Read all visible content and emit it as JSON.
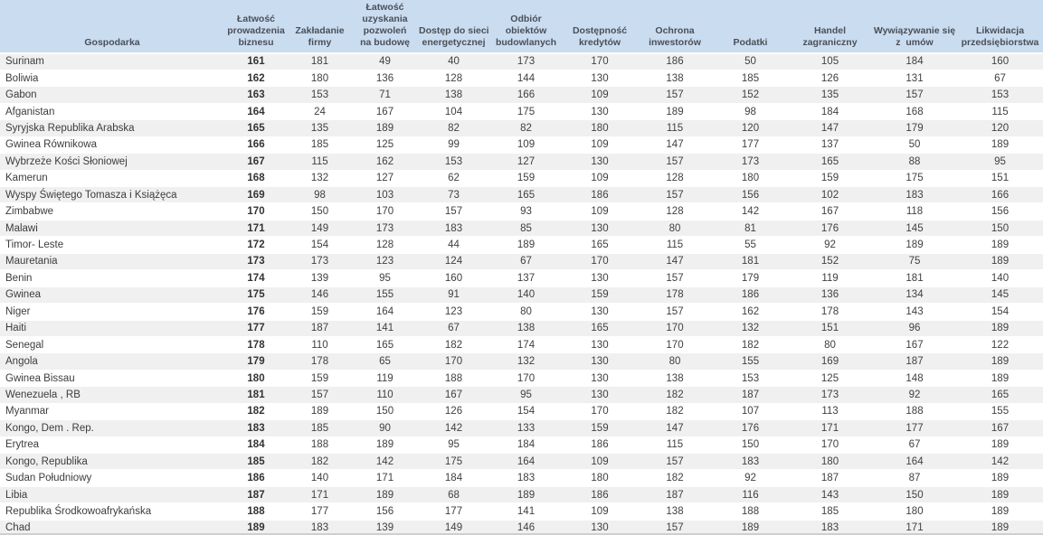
{
  "table": {
    "columns": [
      {
        "id": "economy",
        "label": "Gospodarka"
      },
      {
        "id": "ease-of-doing-business",
        "label": "Łatwość\nprowadzenia\nbiznesu"
      },
      {
        "id": "starting-a-business",
        "label": "Zakładanie\nfirmy"
      },
      {
        "id": "construction-permits",
        "label": "Łatwość\nuzyskania\npozwoleń\nna budowę"
      },
      {
        "id": "getting-electricity",
        "label": "Dostęp do sieci\nenergetycznej"
      },
      {
        "id": "building-acceptance",
        "label": "Odbiór\nobiektów\nbudowlanych"
      },
      {
        "id": "getting-credit",
        "label": "Dostępność\nkredytów"
      },
      {
        "id": "protecting-investors",
        "label": "Ochrona\ninwestorów"
      },
      {
        "id": "taxes",
        "label": "Podatki"
      },
      {
        "id": "foreign-trade",
        "label": "Handel\nzagraniczny"
      },
      {
        "id": "enforcing-contracts",
        "label": "Wywiązywanie się\nz  umów"
      },
      {
        "id": "resolving-insolvency",
        "label": "Likwidacja\nprzedsiębiorstwa"
      }
    ],
    "rows": [
      {
        "economy": "Surinam",
        "values": [
          161,
          181,
          49,
          40,
          173,
          170,
          186,
          50,
          105,
          184,
          160
        ]
      },
      {
        "economy": "Boliwia",
        "values": [
          162,
          180,
          136,
          128,
          144,
          130,
          138,
          185,
          126,
          131,
          67
        ]
      },
      {
        "economy": "Gabon",
        "values": [
          163,
          153,
          71,
          138,
          166,
          109,
          157,
          152,
          135,
          157,
          153
        ]
      },
      {
        "economy": "Afganistan",
        "values": [
          164,
          24,
          167,
          104,
          175,
          130,
          189,
          98,
          184,
          168,
          115
        ]
      },
      {
        "economy": "Syryjska Republika Arabska",
        "values": [
          165,
          135,
          189,
          82,
          82,
          180,
          115,
          120,
          147,
          179,
          120
        ]
      },
      {
        "economy": "Gwinea Równikowa",
        "values": [
          166,
          185,
          125,
          99,
          109,
          109,
          147,
          177,
          137,
          50,
          189
        ]
      },
      {
        "economy": "Wybrzeże Kości Słoniowej",
        "values": [
          167,
          115,
          162,
          153,
          127,
          130,
          157,
          173,
          165,
          88,
          95
        ]
      },
      {
        "economy": "Kamerun",
        "values": [
          168,
          132,
          127,
          62,
          159,
          109,
          128,
          180,
          159,
          175,
          151
        ]
      },
      {
        "economy": "Wyspy Świętego Tomasza i Książęca",
        "values": [
          169,
          98,
          103,
          73,
          165,
          186,
          157,
          156,
          102,
          183,
          166
        ]
      },
      {
        "economy": "Zimbabwe",
        "values": [
          170,
          150,
          170,
          157,
          93,
          109,
          128,
          142,
          167,
          118,
          156
        ]
      },
      {
        "economy": "Malawi",
        "values": [
          171,
          149,
          173,
          183,
          85,
          130,
          80,
          81,
          176,
          145,
          150
        ]
      },
      {
        "economy": "Timor- Leste",
        "values": [
          172,
          154,
          128,
          44,
          189,
          165,
          115,
          55,
          92,
          189,
          189
        ]
      },
      {
        "economy": "Mauretania",
        "values": [
          173,
          173,
          123,
          124,
          67,
          170,
          147,
          181,
          152,
          75,
          189
        ]
      },
      {
        "economy": "Benin",
        "values": [
          174,
          139,
          95,
          160,
          137,
          130,
          157,
          179,
          119,
          181,
          140
        ]
      },
      {
        "economy": "Gwinea",
        "values": [
          175,
          146,
          155,
          91,
          140,
          159,
          178,
          186,
          136,
          134,
          145
        ]
      },
      {
        "economy": "Niger",
        "values": [
          176,
          159,
          164,
          123,
          80,
          130,
          157,
          162,
          178,
          143,
          154
        ]
      },
      {
        "economy": "Haiti",
        "values": [
          177,
          187,
          141,
          67,
          138,
          165,
          170,
          132,
          151,
          96,
          189
        ]
      },
      {
        "economy": "Senegal",
        "values": [
          178,
          110,
          165,
          182,
          174,
          130,
          170,
          182,
          80,
          167,
          122
        ]
      },
      {
        "economy": "Angola",
        "values": [
          179,
          178,
          65,
          170,
          132,
          130,
          80,
          155,
          169,
          187,
          189
        ]
      },
      {
        "economy": "Gwinea Bissau",
        "values": [
          180,
          159,
          119,
          188,
          170,
          130,
          138,
          153,
          125,
          148,
          189
        ]
      },
      {
        "economy": "Wenezuela , RB",
        "values": [
          181,
          157,
          110,
          167,
          95,
          130,
          182,
          187,
          173,
          92,
          165
        ]
      },
      {
        "economy": "Myanmar",
        "values": [
          182,
          189,
          150,
          126,
          154,
          170,
          182,
          107,
          113,
          188,
          155
        ]
      },
      {
        "economy": "Kongo, Dem . Rep.",
        "values": [
          183,
          185,
          90,
          142,
          133,
          159,
          147,
          176,
          171,
          177,
          167
        ]
      },
      {
        "economy": "Erytrea",
        "values": [
          184,
          188,
          189,
          95,
          184,
          186,
          115,
          150,
          170,
          67,
          189
        ]
      },
      {
        "economy": "Kongo, Republika",
        "values": [
          185,
          182,
          142,
          175,
          164,
          109,
          157,
          183,
          180,
          164,
          142
        ]
      },
      {
        "economy": "Sudan Południowy",
        "values": [
          186,
          140,
          171,
          184,
          183,
          180,
          182,
          92,
          187,
          87,
          189
        ]
      },
      {
        "economy": "Libia",
        "values": [
          187,
          171,
          189,
          68,
          189,
          186,
          187,
          116,
          143,
          150,
          189
        ]
      },
      {
        "economy": "Republika Środkowoafrykańska",
        "values": [
          188,
          177,
          156,
          177,
          141,
          109,
          138,
          188,
          185,
          180,
          189
        ]
      },
      {
        "economy": "Chad",
        "values": [
          189,
          183,
          139,
          149,
          146,
          130,
          157,
          189,
          183,
          171,
          189
        ]
      }
    ]
  },
  "colors": {
    "header_bg": "#cadcf0",
    "stripe_bg": "#f0f0f0",
    "row_bg": "#ffffff",
    "header_text": "#4a4f57",
    "body_text": "#404040",
    "bottom_border": "#cfcfcf"
  }
}
